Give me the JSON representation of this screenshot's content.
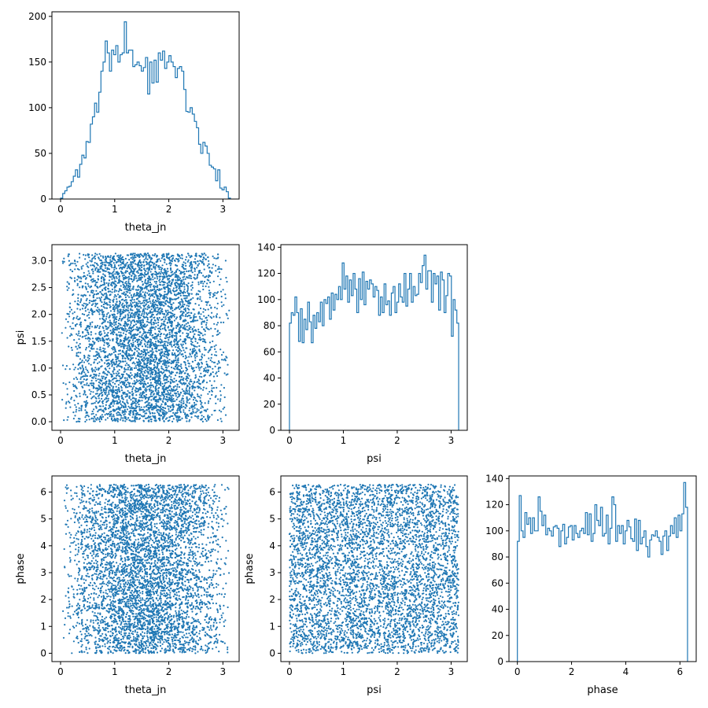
{
  "colors": {
    "series": "#1f77b4",
    "axis": "#000000",
    "background": "#ffffff"
  },
  "chart_data": [
    {
      "type": "histogram",
      "panel": "theta_jn-hist",
      "xlabel": "theta_jn",
      "ylabel": "",
      "xlim": [
        -0.16,
        3.3
      ],
      "ylim": [
        0,
        205
      ],
      "xticks": [
        0,
        1,
        2,
        3
      ],
      "yticks": [
        0,
        50,
        100,
        150,
        200
      ],
      "bin_range": [
        0,
        3.14
      ],
      "counts": [
        1,
        6,
        9,
        13,
        14,
        19,
        25,
        32,
        24,
        38,
        48,
        45,
        63,
        62,
        82,
        90,
        105,
        95,
        117,
        140,
        150,
        173,
        160,
        140,
        163,
        158,
        168,
        150,
        158,
        160,
        194,
        160,
        163,
        163,
        145,
        147,
        150,
        146,
        140,
        144,
        155,
        115,
        150,
        127,
        152,
        128,
        160,
        152,
        162,
        143,
        150,
        157,
        150,
        145,
        133,
        143,
        145,
        140,
        120,
        96,
        95,
        100,
        93,
        85,
        78,
        60,
        50,
        62,
        58,
        50,
        37,
        35,
        33,
        20,
        32,
        12,
        10,
        13,
        8,
        1
      ]
    },
    {
      "type": "scatter",
      "panel": "psi-vs-theta_jn",
      "xlabel": "theta_jn",
      "ylabel": "psi",
      "xlim": [
        -0.16,
        3.3
      ],
      "ylim": [
        -0.16,
        3.3
      ],
      "xticks": [
        0,
        1,
        2,
        3
      ],
      "yticks": [
        0.0,
        0.5,
        1.0,
        1.5,
        2.0,
        2.5,
        3.0
      ],
      "x_var": "theta_jn",
      "y_var": "psi",
      "x_range": [
        0,
        3.14
      ],
      "y_range": [
        0,
        3.14
      ],
      "x_distribution": "sine",
      "y_distribution": "uniform",
      "n_points": 5000
    },
    {
      "type": "histogram",
      "panel": "psi-hist",
      "xlabel": "psi",
      "ylabel": "",
      "xlim": [
        -0.16,
        3.3
      ],
      "ylim": [
        0,
        142
      ],
      "xticks": [
        0,
        1,
        2,
        3
      ],
      "yticks": [
        0,
        20,
        40,
        60,
        80,
        100,
        120,
        140
      ],
      "bin_range": [
        0,
        3.14
      ],
      "counts": [
        82,
        90,
        88,
        102,
        90,
        68,
        93,
        67,
        85,
        77,
        98,
        83,
        67,
        88,
        78,
        90,
        83,
        98,
        80,
        100,
        97,
        102,
        85,
        105,
        92,
        104,
        100,
        110,
        100,
        128,
        108,
        118,
        98,
        115,
        103,
        120,
        108,
        90,
        116,
        100,
        121,
        96,
        114,
        108,
        115,
        112,
        102,
        110,
        107,
        88,
        102,
        90,
        112,
        96,
        99,
        88,
        105,
        110,
        90,
        98,
        112,
        102,
        98,
        120,
        95,
        108,
        120,
        98,
        110,
        103,
        104,
        120,
        113,
        126,
        134,
        108,
        122,
        122,
        98,
        120,
        112,
        118,
        92,
        121,
        115,
        90,
        103,
        120,
        118,
        72,
        100,
        92,
        82
      ]
    },
    {
      "type": "scatter",
      "panel": "phase-vs-theta_jn",
      "xlabel": "theta_jn",
      "ylabel": "phase",
      "xlim": [
        -0.16,
        3.3
      ],
      "ylim": [
        -0.31,
        6.6
      ],
      "xticks": [
        0,
        1,
        2,
        3
      ],
      "yticks": [
        0,
        1,
        2,
        3,
        4,
        5,
        6
      ],
      "x_var": "theta_jn",
      "y_var": "phase",
      "x_range": [
        0,
        3.14
      ],
      "y_range": [
        0,
        6.28
      ],
      "x_distribution": "sine",
      "y_distribution": "uniform",
      "n_points": 5000
    },
    {
      "type": "scatter",
      "panel": "phase-vs-psi",
      "xlabel": "psi",
      "ylabel": "phase",
      "xlim": [
        -0.16,
        3.3
      ],
      "ylim": [
        -0.31,
        6.6
      ],
      "xticks": [
        0,
        1,
        2,
        3
      ],
      "yticks": [
        0,
        1,
        2,
        3,
        4,
        5,
        6
      ],
      "x_var": "psi",
      "y_var": "phase",
      "x_range": [
        0,
        3.14
      ],
      "y_range": [
        0,
        6.28
      ],
      "x_distribution": "uniform",
      "y_distribution": "uniform",
      "n_points": 5000
    },
    {
      "type": "histogram",
      "panel": "phase-hist",
      "xlabel": "phase",
      "ylabel": "",
      "xlim": [
        -0.31,
        6.6
      ],
      "ylim": [
        0,
        142
      ],
      "xticks": [
        0,
        2,
        4,
        6
      ],
      "yticks": [
        0,
        20,
        40,
        60,
        80,
        100,
        120,
        140
      ],
      "bin_range": [
        0,
        6.28
      ],
      "counts": [
        92,
        127,
        100,
        95,
        114,
        105,
        110,
        98,
        110,
        100,
        100,
        126,
        115,
        104,
        112,
        97,
        102,
        100,
        96,
        103,
        104,
        102,
        88,
        100,
        105,
        90,
        95,
        103,
        104,
        93,
        104,
        98,
        95,
        100,
        102,
        98,
        114,
        97,
        113,
        92,
        98,
        120,
        108,
        104,
        118,
        96,
        98,
        112,
        90,
        102,
        126,
        120,
        92,
        104,
        98,
        104,
        90,
        100,
        108,
        103,
        94,
        92,
        109,
        85,
        108,
        90,
        95,
        100,
        88,
        80,
        93,
        97,
        96,
        100,
        95,
        92,
        82,
        96,
        100,
        85,
        96,
        104,
        98,
        110,
        95,
        112,
        100,
        113,
        137,
        118
      ]
    }
  ]
}
